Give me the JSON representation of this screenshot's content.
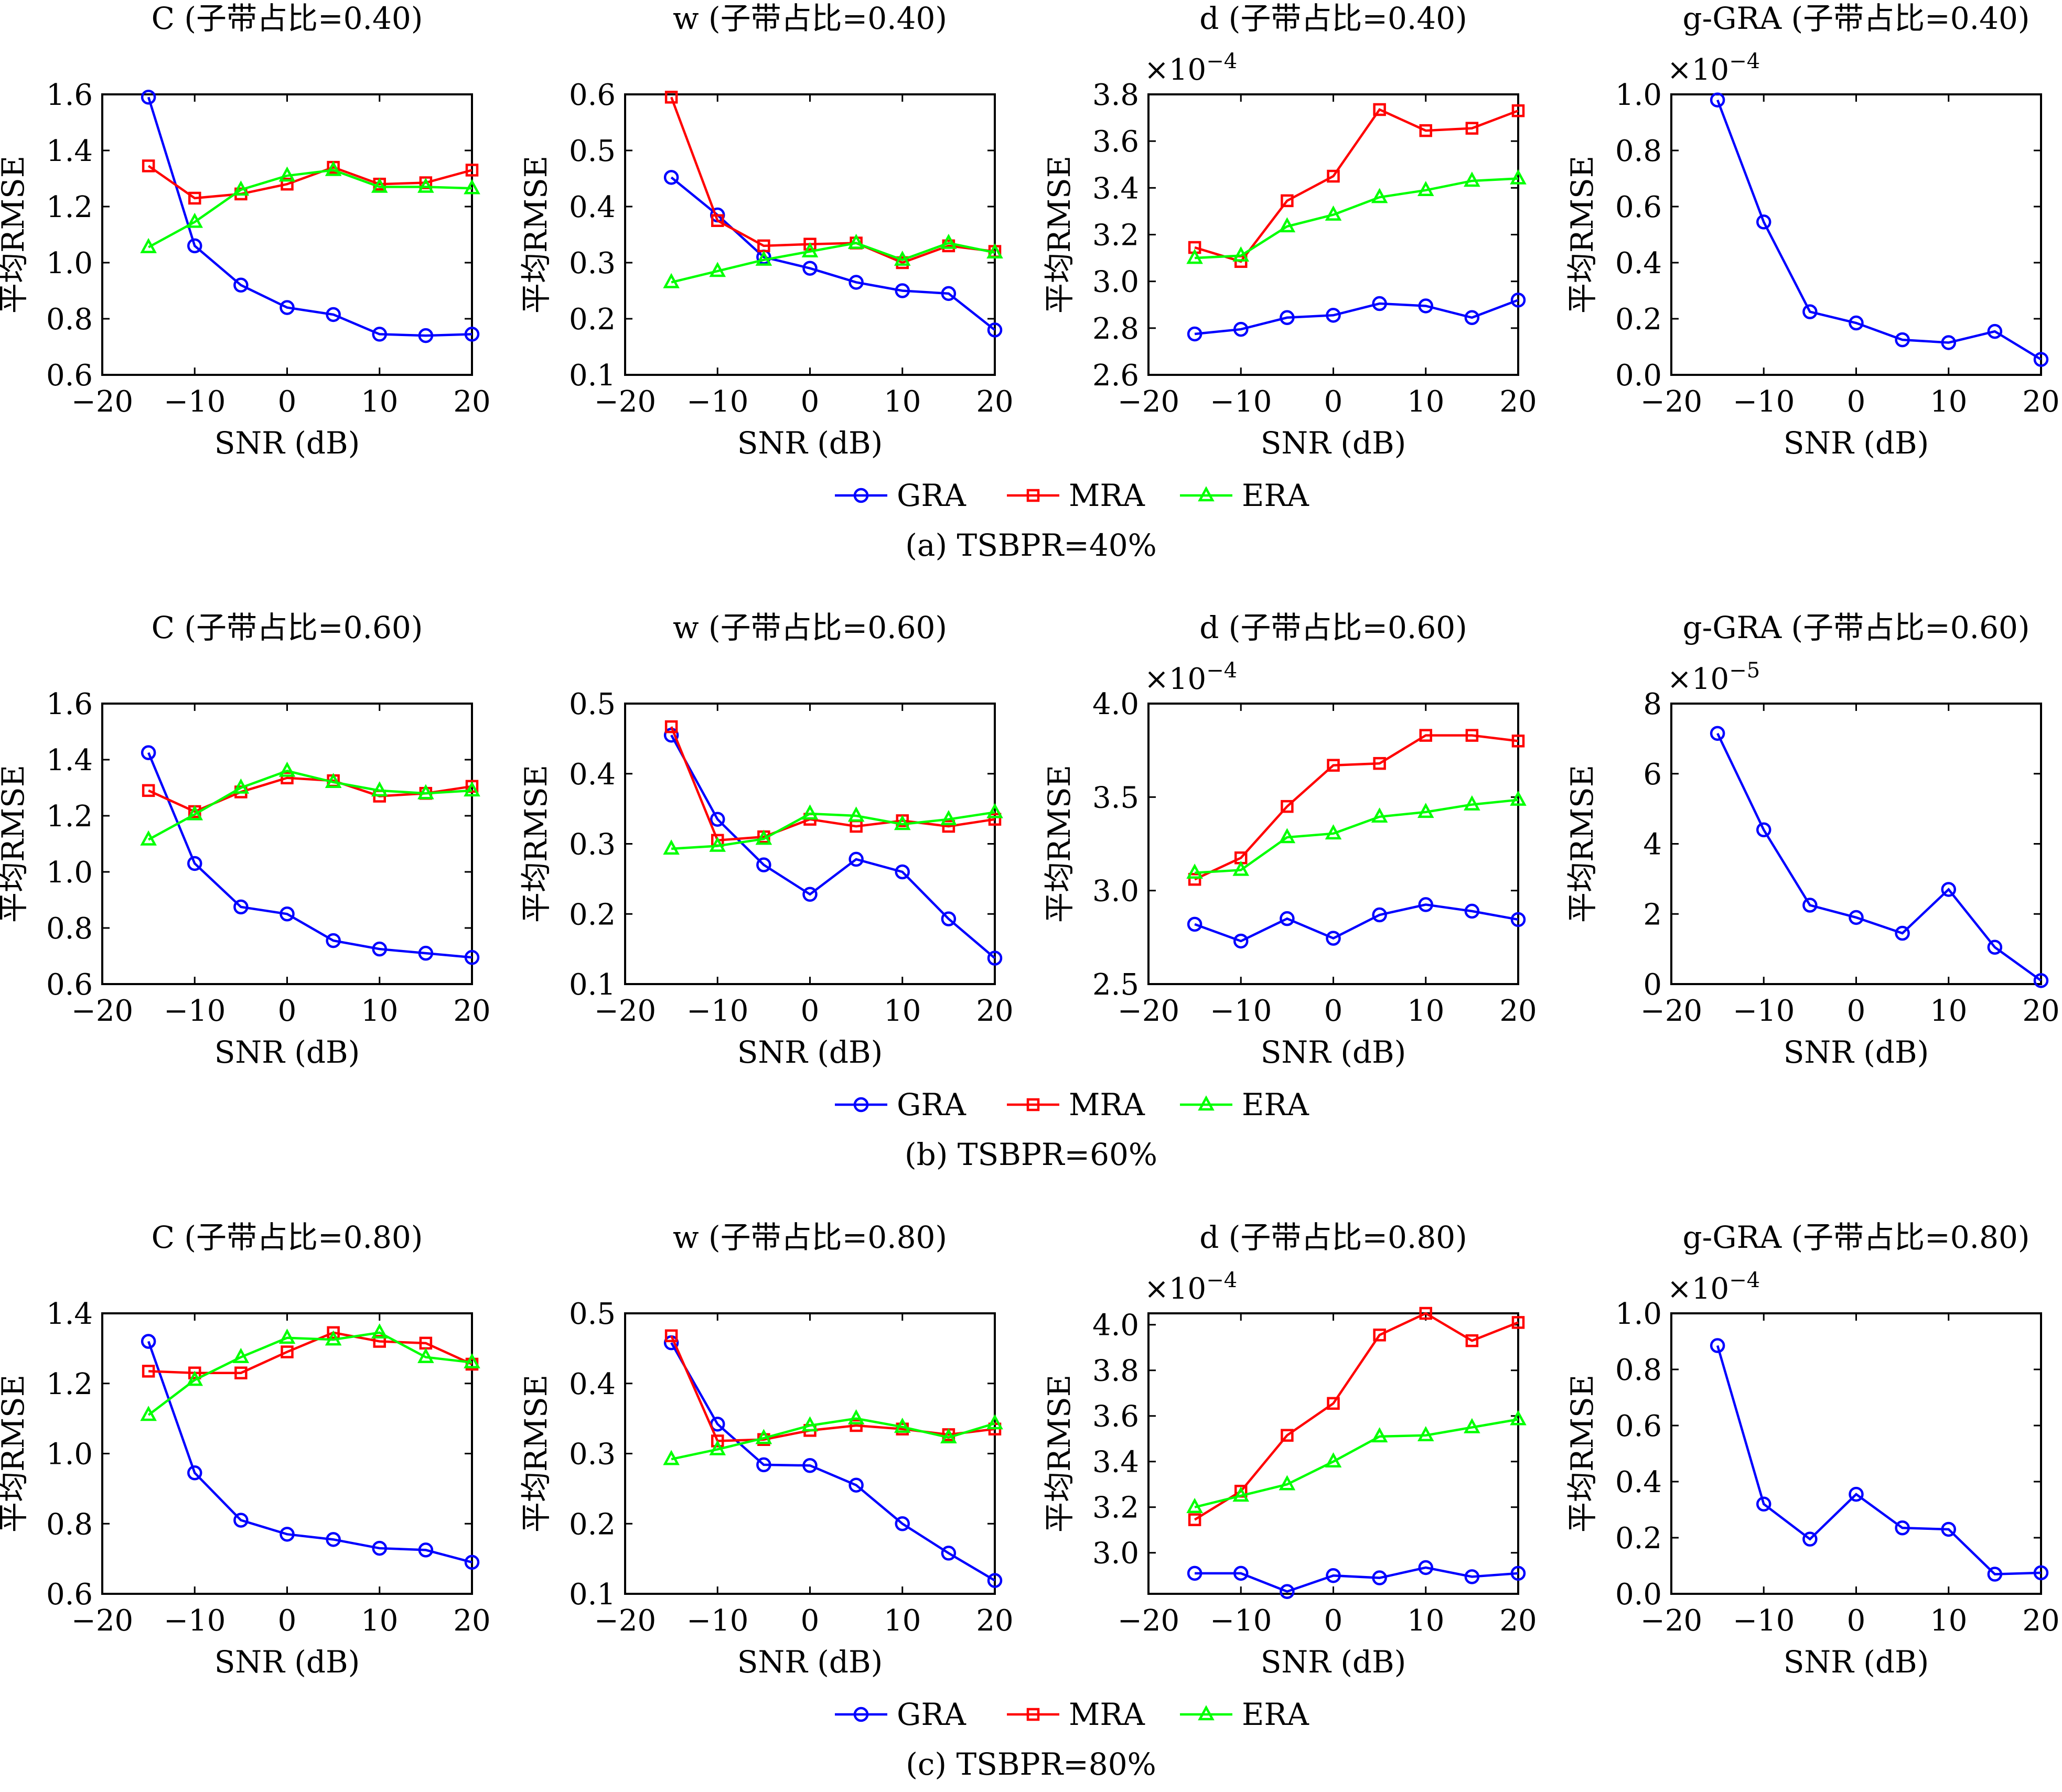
{
  "figure": {
    "x_label": "SNR (dB)",
    "y_label": "平均RMSE",
    "legend_items": [
      {
        "name": "GRA",
        "color": "#0000ff",
        "marker": "circle"
      },
      {
        "name": "MRA",
        "color": "#ff0000",
        "marker": "square"
      },
      {
        "name": "ERA",
        "color": "#00ff00",
        "marker": "triangle"
      }
    ],
    "row_captions": [
      "(a) TSBPR=40%",
      "(b) TSBPR=60%",
      "(c) TSBPR=80%"
    ]
  },
  "chart_data": [
    {
      "type": "line",
      "title": "C (子带占比=0.40)",
      "xlabel": "SNR (dB)",
      "ylabel": "平均RMSE",
      "xlim": [
        -20,
        20
      ],
      "ylim": [
        0.6,
        1.6
      ],
      "yticks": [
        0.6,
        0.8,
        1.0,
        1.2,
        1.4,
        1.6
      ],
      "ytick_decimals": 1,
      "exponent": "",
      "x": [
        -15,
        -10,
        -5,
        0,
        5,
        10,
        15,
        20
      ],
      "series": [
        {
          "name": "GRA",
          "values": [
            1.59,
            1.06,
            0.92,
            0.84,
            0.815,
            0.745,
            0.74,
            0.745
          ]
        },
        {
          "name": "MRA",
          "values": [
            1.345,
            1.23,
            1.245,
            1.28,
            1.34,
            1.28,
            1.285,
            1.33
          ]
        },
        {
          "name": "ERA",
          "values": [
            1.055,
            1.145,
            1.26,
            1.31,
            1.33,
            1.27,
            1.27,
            1.265
          ]
        }
      ]
    },
    {
      "type": "line",
      "title": "w (子带占比=0.40)",
      "xlabel": "SNR (dB)",
      "ylabel": "平均RMSE",
      "xlim": [
        -20,
        20
      ],
      "ylim": [
        0.1,
        0.6
      ],
      "yticks": [
        0.1,
        0.2,
        0.3,
        0.4,
        0.5,
        0.6
      ],
      "ytick_decimals": 1,
      "exponent": "",
      "x": [
        -15,
        -10,
        -5,
        0,
        5,
        10,
        15,
        20
      ],
      "series": [
        {
          "name": "GRA",
          "values": [
            0.452,
            0.385,
            0.31,
            0.29,
            0.265,
            0.25,
            0.245,
            0.18
          ]
        },
        {
          "name": "MRA",
          "values": [
            0.595,
            0.375,
            0.33,
            0.333,
            0.335,
            0.3,
            0.33,
            0.32
          ]
        },
        {
          "name": "ERA",
          "values": [
            0.265,
            0.285,
            0.305,
            0.32,
            0.335,
            0.305,
            0.335,
            0.318
          ]
        }
      ]
    },
    {
      "type": "line",
      "title": "d (子带占比=0.40)",
      "xlabel": "SNR (dB)",
      "ylabel": "平均RMSE",
      "xlim": [
        -20,
        20
      ],
      "ylim": [
        2.6,
        3.8
      ],
      "yticks": [
        2.6,
        2.8,
        3.0,
        3.2,
        3.4,
        3.6,
        3.8
      ],
      "ytick_decimals": 1,
      "exponent": "-4",
      "x": [
        -15,
        -10,
        -5,
        0,
        5,
        10,
        15,
        20
      ],
      "series": [
        {
          "name": "GRA",
          "values": [
            2.775,
            2.795,
            2.845,
            2.855,
            2.905,
            2.895,
            2.845,
            2.92
          ]
        },
        {
          "name": "MRA",
          "values": [
            3.145,
            3.085,
            3.345,
            3.45,
            3.735,
            3.645,
            3.655,
            3.73
          ]
        },
        {
          "name": "ERA",
          "values": [
            3.1,
            3.11,
            3.235,
            3.285,
            3.36,
            3.39,
            3.43,
            3.44
          ]
        }
      ]
    },
    {
      "type": "line",
      "title": "g-GRA (子带占比=0.40)",
      "xlabel": "SNR (dB)",
      "ylabel": "平均RMSE",
      "xlim": [
        -20,
        20
      ],
      "ylim": [
        0,
        1.0
      ],
      "yticks": [
        0,
        0.2,
        0.4,
        0.6,
        0.8,
        1.0
      ],
      "ytick_decimals": 1,
      "exponent": "-4",
      "x": [
        -15,
        -10,
        -5,
        0,
        5,
        10,
        15,
        20
      ],
      "series": [
        {
          "name": "GRA",
          "values": [
            0.98,
            0.545,
            0.225,
            0.185,
            0.125,
            0.115,
            0.155,
            0.055
          ]
        }
      ]
    },
    {
      "type": "line",
      "title": "C (子带占比=0.60)",
      "xlabel": "SNR (dB)",
      "ylabel": "平均RMSE",
      "xlim": [
        -20,
        20
      ],
      "ylim": [
        0.6,
        1.6
      ],
      "yticks": [
        0.6,
        0.8,
        1.0,
        1.2,
        1.4,
        1.6
      ],
      "ytick_decimals": 1,
      "exponent": "",
      "x": [
        -15,
        -10,
        -5,
        0,
        5,
        10,
        15,
        20
      ],
      "series": [
        {
          "name": "GRA",
          "values": [
            1.425,
            1.03,
            0.875,
            0.85,
            0.755,
            0.725,
            0.71,
            0.695
          ]
        },
        {
          "name": "MRA",
          "values": [
            1.29,
            1.215,
            1.285,
            1.335,
            1.325,
            1.27,
            1.28,
            1.305
          ]
        },
        {
          "name": "ERA",
          "values": [
            1.115,
            1.205,
            1.3,
            1.36,
            1.32,
            1.29,
            1.28,
            1.29
          ]
        }
      ]
    },
    {
      "type": "line",
      "title": "w (子带占比=0.60)",
      "xlabel": "SNR (dB)",
      "ylabel": "平均RMSE",
      "xlim": [
        -20,
        20
      ],
      "ylim": [
        0.1,
        0.5
      ],
      "yticks": [
        0.1,
        0.2,
        0.3,
        0.4,
        0.5
      ],
      "ytick_decimals": 1,
      "exponent": "",
      "x": [
        -15,
        -10,
        -5,
        0,
        5,
        10,
        15,
        20
      ],
      "series": [
        {
          "name": "GRA",
          "values": [
            0.455,
            0.335,
            0.27,
            0.228,
            0.278,
            0.26,
            0.193,
            0.137
          ]
        },
        {
          "name": "MRA",
          "values": [
            0.467,
            0.305,
            0.31,
            0.335,
            0.325,
            0.333,
            0.325,
            0.335
          ]
        },
        {
          "name": "ERA",
          "values": [
            0.293,
            0.297,
            0.307,
            0.343,
            0.34,
            0.328,
            0.335,
            0.345
          ]
        }
      ]
    },
    {
      "type": "line",
      "title": "d (子带占比=0.60)",
      "xlabel": "SNR (dB)",
      "ylabel": "平均RMSE",
      "xlim": [
        -20,
        20
      ],
      "ylim": [
        2.5,
        4.0
      ],
      "yticks": [
        2.5,
        3.0,
        3.5,
        4.0
      ],
      "ytick_decimals": 1,
      "exponent": "-4",
      "x": [
        -15,
        -10,
        -5,
        0,
        5,
        10,
        15,
        20
      ],
      "series": [
        {
          "name": "GRA",
          "values": [
            2.82,
            2.73,
            2.85,
            2.745,
            2.87,
            2.925,
            2.89,
            2.845
          ]
        },
        {
          "name": "MRA",
          "values": [
            3.06,
            3.175,
            3.45,
            3.67,
            3.68,
            3.83,
            3.83,
            3.8
          ]
        },
        {
          "name": "ERA",
          "values": [
            3.095,
            3.11,
            3.285,
            3.305,
            3.395,
            3.42,
            3.46,
            3.485
          ]
        }
      ]
    },
    {
      "type": "line",
      "title": "g-GRA (子带占比=0.60)",
      "xlabel": "SNR (dB)",
      "ylabel": "平均RMSE",
      "xlim": [
        -20,
        20
      ],
      "ylim": [
        0,
        8
      ],
      "yticks": [
        0,
        2,
        4,
        6,
        8
      ],
      "ytick_decimals": 0,
      "exponent": "-5",
      "x": [
        -15,
        -10,
        -5,
        0,
        5,
        10,
        15,
        20
      ],
      "series": [
        {
          "name": "GRA",
          "values": [
            7.15,
            4.4,
            2.25,
            1.9,
            1.45,
            2.7,
            1.05,
            0.1
          ]
        }
      ]
    },
    {
      "type": "line",
      "title": "C (子带占比=0.80)",
      "xlabel": "SNR (dB)",
      "ylabel": "平均RMSE",
      "xlim": [
        -20,
        20
      ],
      "ylim": [
        0.6,
        1.4
      ],
      "yticks": [
        0.6,
        0.8,
        1.0,
        1.2,
        1.4
      ],
      "ytick_decimals": 1,
      "exponent": "",
      "x": [
        -15,
        -10,
        -5,
        0,
        5,
        10,
        15,
        20
      ],
      "series": [
        {
          "name": "GRA",
          "values": [
            1.32,
            0.945,
            0.81,
            0.77,
            0.755,
            0.73,
            0.725,
            0.69
          ]
        },
        {
          "name": "MRA",
          "values": [
            1.235,
            1.23,
            1.23,
            1.29,
            1.345,
            1.32,
            1.315,
            1.255
          ]
        },
        {
          "name": "ERA",
          "values": [
            1.11,
            1.21,
            1.275,
            1.33,
            1.325,
            1.345,
            1.275,
            1.26
          ]
        }
      ]
    },
    {
      "type": "line",
      "title": "w (子带占比=0.80)",
      "xlabel": "SNR (dB)",
      "ylabel": "平均RMSE",
      "xlim": [
        -20,
        20
      ],
      "ylim": [
        0.1,
        0.5
      ],
      "yticks": [
        0.1,
        0.2,
        0.3,
        0.4,
        0.5
      ],
      "ytick_decimals": 1,
      "exponent": "",
      "x": [
        -15,
        -10,
        -5,
        0,
        5,
        10,
        15,
        20
      ],
      "series": [
        {
          "name": "GRA",
          "values": [
            0.458,
            0.342,
            0.284,
            0.283,
            0.255,
            0.2,
            0.158,
            0.119
          ]
        },
        {
          "name": "MRA",
          "values": [
            0.468,
            0.318,
            0.32,
            0.333,
            0.34,
            0.335,
            0.327,
            0.335
          ]
        },
        {
          "name": "ERA",
          "values": [
            0.292,
            0.306,
            0.322,
            0.34,
            0.35,
            0.338,
            0.323,
            0.343
          ]
        }
      ]
    },
    {
      "type": "line",
      "title": "d (子带占比=0.80)",
      "xlabel": "SNR (dB)",
      "ylabel": "平均RMSE",
      "xlim": [
        -20,
        20
      ],
      "ylim": [
        2.82,
        4.05
      ],
      "yticks": [
        3.0,
        3.2,
        3.4,
        3.6,
        3.8,
        4.0
      ],
      "ytick_decimals": 1,
      "exponent": "-4",
      "x": [
        -15,
        -10,
        -5,
        0,
        5,
        10,
        15,
        20
      ],
      "series": [
        {
          "name": "GRA",
          "values": [
            2.91,
            2.91,
            2.83,
            2.9,
            2.89,
            2.935,
            2.895,
            2.91
          ]
        },
        {
          "name": "MRA",
          "values": [
            3.145,
            3.27,
            3.515,
            3.655,
            3.955,
            4.05,
            3.93,
            4.01
          ]
        },
        {
          "name": "ERA",
          "values": [
            3.2,
            3.25,
            3.3,
            3.4,
            3.51,
            3.515,
            3.55,
            3.585
          ]
        }
      ]
    },
    {
      "type": "line",
      "title": "g-GRA (子带占比=0.80)",
      "xlabel": "SNR (dB)",
      "ylabel": "平均RMSE",
      "xlim": [
        -20,
        20
      ],
      "ylim": [
        0,
        1.0
      ],
      "yticks": [
        0,
        0.2,
        0.4,
        0.6,
        0.8,
        1.0
      ],
      "ytick_decimals": 1,
      "exponent": "-4",
      "x": [
        -15,
        -10,
        -5,
        0,
        5,
        10,
        15,
        20
      ],
      "series": [
        {
          "name": "GRA",
          "values": [
            0.885,
            0.32,
            0.195,
            0.355,
            0.235,
            0.23,
            0.07,
            0.075
          ]
        }
      ]
    }
  ]
}
